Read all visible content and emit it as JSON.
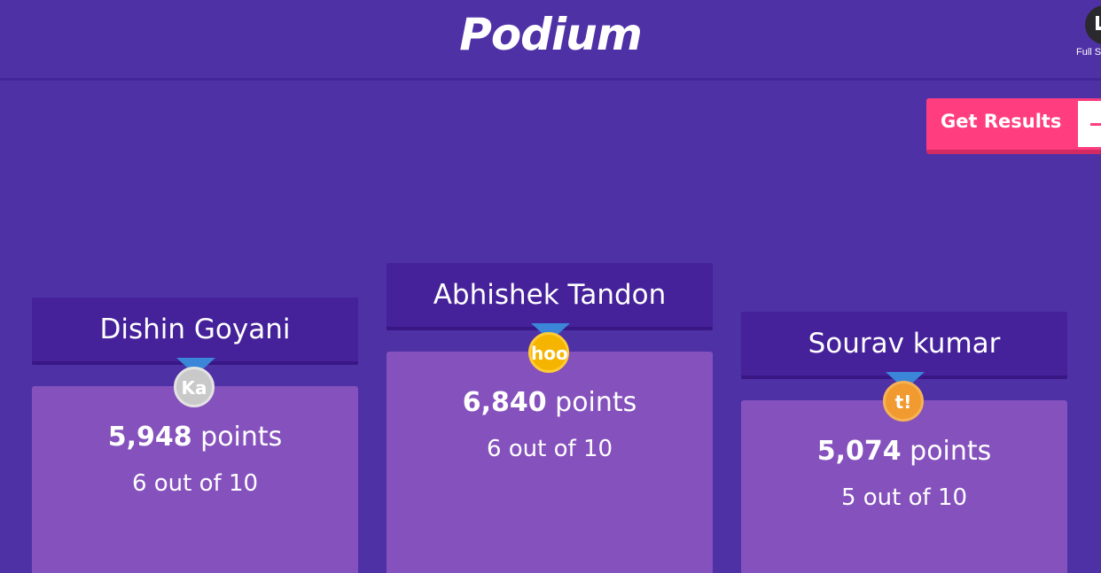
{
  "header": {
    "title": "Podium",
    "fullscreen_label": "Full S"
  },
  "actions": {
    "get_results_label": "Get Results"
  },
  "podium": [
    {
      "place": "second",
      "name": "Dishin Goyani",
      "medal_text": "Ka",
      "medal_color": "#c9c9c9",
      "points_value": "5,948",
      "points_unit": "points",
      "correct": "6 out of 10"
    },
    {
      "place": "first",
      "name": "Abhishek Tandon",
      "medal_text": "hoo",
      "medal_color": "#f4b400",
      "points_value": "6,840",
      "points_unit": "points",
      "correct": "6 out of 10"
    },
    {
      "place": "third",
      "name": "Sourav kumar",
      "medal_text": "t!",
      "medal_color": "#f19a2f",
      "points_value": "5,074",
      "points_unit": "points",
      "correct": "5 out of 10"
    }
  ],
  "colors": {
    "background": "#4f31a6",
    "name_plate": "#45219a",
    "pillar": "#8551bd",
    "accent": "#ff3d7f"
  }
}
